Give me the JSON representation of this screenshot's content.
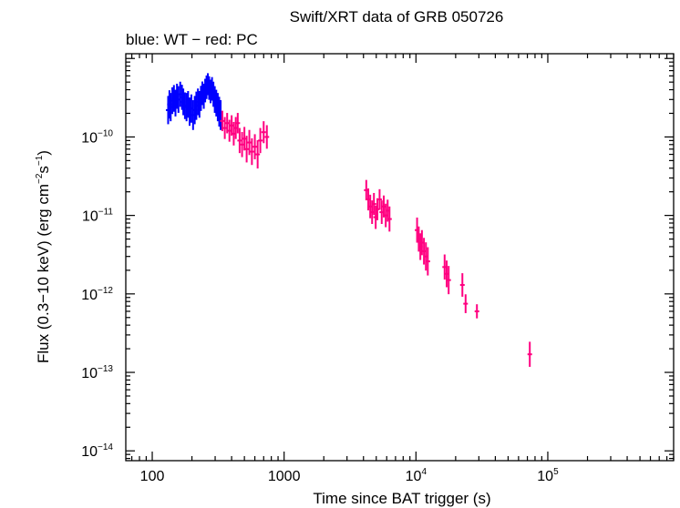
{
  "chart_data": {
    "type": "scatter",
    "title": "Swift/XRT data of GRB 050726",
    "subtitle": "blue: WT − red: PC",
    "xlabel": "Time since BAT trigger (s)",
    "ylabel": {
      "main": "Flux (0.3−10 keV) (erg cm",
      "exp1": "−2",
      "mid": "s",
      "exp2": "−1",
      "end": ")"
    },
    "x_scale": "log",
    "y_scale": "log",
    "xlim": [
      63,
      900000
    ],
    "ylim": [
      7.5e-15,
      1.15e-09
    ],
    "x_tick_labels": [
      {
        "value": 100,
        "base": "100",
        "exp": ""
      },
      {
        "value": 1000,
        "base": "1000",
        "exp": ""
      },
      {
        "value": 10000,
        "base": "10",
        "exp": "4"
      },
      {
        "value": 100000,
        "base": "10",
        "exp": "5"
      }
    ],
    "y_tick_labels": [
      {
        "value": 1e-10,
        "base": "10",
        "exp": "−10"
      },
      {
        "value": 1e-11,
        "base": "10",
        "exp": "−11"
      },
      {
        "value": 1e-12,
        "base": "10",
        "exp": "−12"
      },
      {
        "value": 1e-13,
        "base": "10",
        "exp": "−13"
      },
      {
        "value": 1e-14,
        "base": "10",
        "exp": "−14"
      }
    ],
    "grid": false,
    "series": [
      {
        "color": "#0000ff",
        "points": [
          [
            132,
            2.2e-10
          ],
          [
            135,
            2.6e-10
          ],
          [
            138,
            2.4e-10
          ],
          [
            142,
            2.9e-10
          ],
          [
            146,
            3.1e-10
          ],
          [
            150,
            2.7e-10
          ],
          [
            154,
            3.3e-10
          ],
          [
            158,
            3e-10
          ],
          [
            163,
            3.5e-10
          ],
          [
            168,
            3.2e-10
          ],
          [
            172,
            2.8e-10
          ],
          [
            177,
            2.5e-10
          ],
          [
            182,
            2.4e-10
          ],
          [
            187,
            2.6e-10
          ],
          [
            192,
            2.1e-10
          ],
          [
            198,
            2.3e-10
          ],
          [
            204,
            1.9e-10
          ],
          [
            210,
            2.2e-10
          ],
          [
            216,
            2.5e-10
          ],
          [
            222,
            2.8e-10
          ],
          [
            228,
            2.6e-10
          ],
          [
            234,
            3.1e-10
          ],
          [
            240,
            3.6e-10
          ],
          [
            246,
            3.3e-10
          ],
          [
            252,
            3.9e-10
          ],
          [
            258,
            4.3e-10
          ],
          [
            264,
            4.7e-10
          ],
          [
            270,
            4.2e-10
          ],
          [
            277,
            3.8e-10
          ],
          [
            284,
            4.1e-10
          ],
          [
            291,
            3.5e-10
          ],
          [
            298,
            3e-10
          ],
          [
            306,
            2.7e-10
          ],
          [
            314,
            2.4e-10
          ],
          [
            322,
            2.1e-10
          ],
          [
            330,
            1.9e-10
          ]
        ],
        "err": [
          0.18,
          0.18,
          0.18,
          0.17,
          0.17,
          0.17,
          0.16,
          0.17,
          0.16,
          0.16,
          0.17,
          0.17,
          0.18,
          0.17,
          0.18,
          0.18,
          0.19,
          0.18,
          0.18,
          0.17,
          0.17,
          0.16,
          0.15,
          0.16,
          0.15,
          0.15,
          0.14,
          0.15,
          0.15,
          0.15,
          0.16,
          0.17,
          0.17,
          0.18,
          0.19,
          0.19
        ]
      },
      {
        "color": "#ff0080",
        "points": [
          [
            340,
            1.6e-10
          ],
          [
            355,
            1.3e-10
          ],
          [
            370,
            1.5e-10
          ],
          [
            385,
            1.2e-10
          ],
          [
            400,
            1.4e-10
          ],
          [
            415,
            1.1e-10
          ],
          [
            430,
            1.3e-10
          ],
          [
            445,
            1.5e-10
          ],
          [
            460,
            9e-11
          ],
          [
            480,
            8e-11
          ],
          [
            500,
            9.5e-11
          ],
          [
            520,
            7e-11
          ],
          [
            545,
            8.5e-11
          ],
          [
            570,
            6.5e-11
          ],
          [
            600,
            7.5e-11
          ],
          [
            630,
            6e-11
          ],
          [
            660,
            9e-11
          ],
          [
            700,
            1.15e-10
          ],
          [
            740,
            1e-10
          ],
          [
            4200,
            2.1e-11
          ],
          [
            4350,
            1.6e-11
          ],
          [
            4500,
            1.3e-11
          ],
          [
            4650,
            1.1e-11
          ],
          [
            4800,
            1.4e-11
          ],
          [
            4950,
            9.5e-12
          ],
          [
            5100,
            1.2e-11
          ],
          [
            5300,
            1.6e-11
          ],
          [
            5500,
            1.1e-11
          ],
          [
            5700,
            1.3e-11
          ],
          [
            5900,
            1e-11
          ],
          [
            6100,
            1.15e-11
          ],
          [
            6300,
            9e-12
          ],
          [
            10200,
            6.5e-12
          ],
          [
            10500,
            5e-12
          ],
          [
            10800,
            4e-12
          ],
          [
            11100,
            4.5e-12
          ],
          [
            11500,
            3.5e-12
          ],
          [
            11900,
            3e-12
          ],
          [
            12300,
            2.6e-12
          ],
          [
            16500,
            2.2e-12
          ],
          [
            17100,
            1.8e-12
          ],
          [
            17700,
            1.5e-12
          ],
          [
            22500,
            1.3e-12
          ],
          [
            23800,
            7.5e-13
          ],
          [
            29000,
            6e-13
          ],
          [
            73000,
            1.7e-13
          ]
        ],
        "err": [
          0.13,
          0.14,
          0.13,
          0.14,
          0.13,
          0.15,
          0.14,
          0.13,
          0.16,
          0.16,
          0.15,
          0.17,
          0.16,
          0.17,
          0.16,
          0.18,
          0.16,
          0.14,
          0.15,
          0.13,
          0.14,
          0.15,
          0.15,
          0.14,
          0.15,
          0.14,
          0.13,
          0.15,
          0.14,
          0.15,
          0.14,
          0.16,
          0.16,
          0.16,
          0.17,
          0.16,
          0.17,
          0.18,
          0.18,
          0.16,
          0.17,
          0.18,
          0.15,
          0.12,
          0.09,
          0.16
        ]
      }
    ]
  }
}
